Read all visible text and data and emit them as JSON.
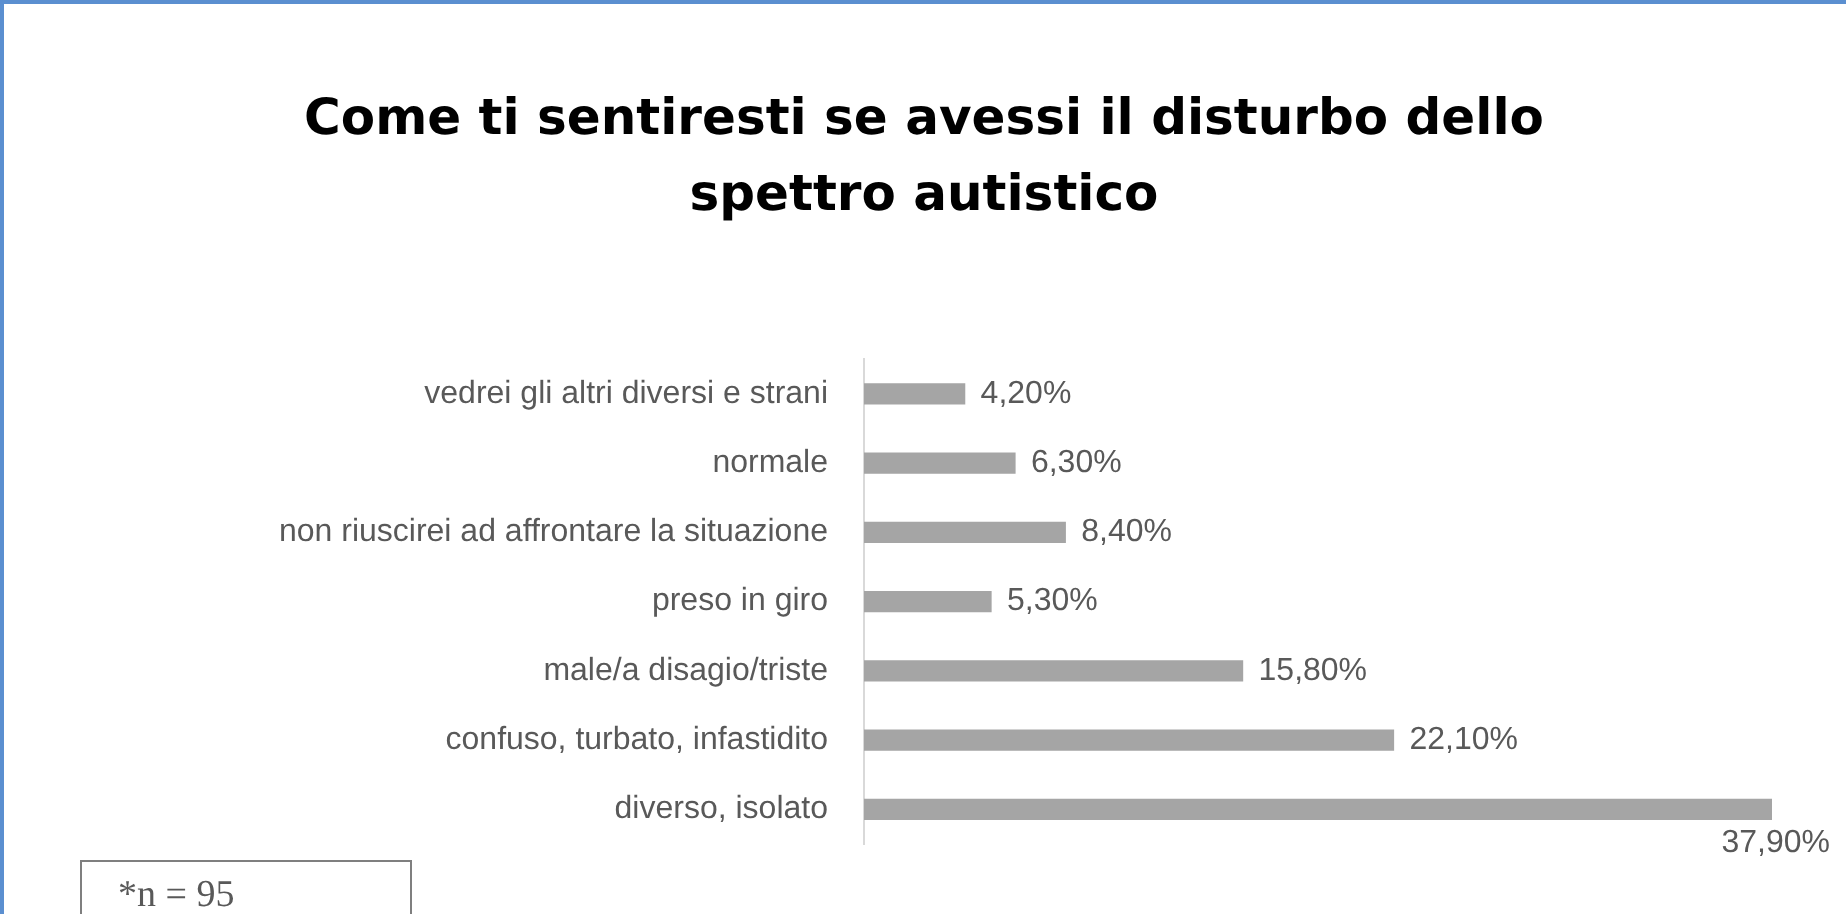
{
  "chart_data": {
    "type": "bar",
    "orientation": "horizontal",
    "title": "Come ti sentiresti se avessi il disturbo dello spettro autistico",
    "categories": [
      "vedrei gli altri diversi e strani",
      "normale",
      "non riuscirei ad affrontare la situazione",
      "preso in giro",
      "male/a disagio/triste",
      "confuso, turbato, infastidito",
      "diverso, isolato"
    ],
    "values": [
      4.2,
      6.3,
      8.4,
      5.3,
      15.8,
      22.1,
      37.9
    ],
    "value_labels": [
      "4,20%",
      "6,30%",
      "8,40%",
      "5,30%",
      "15,80%",
      "22,10%",
      "37,90%"
    ],
    "color": "#a5a5a5",
    "legend": false,
    "annotations": [
      "*n = 95"
    ]
  }
}
